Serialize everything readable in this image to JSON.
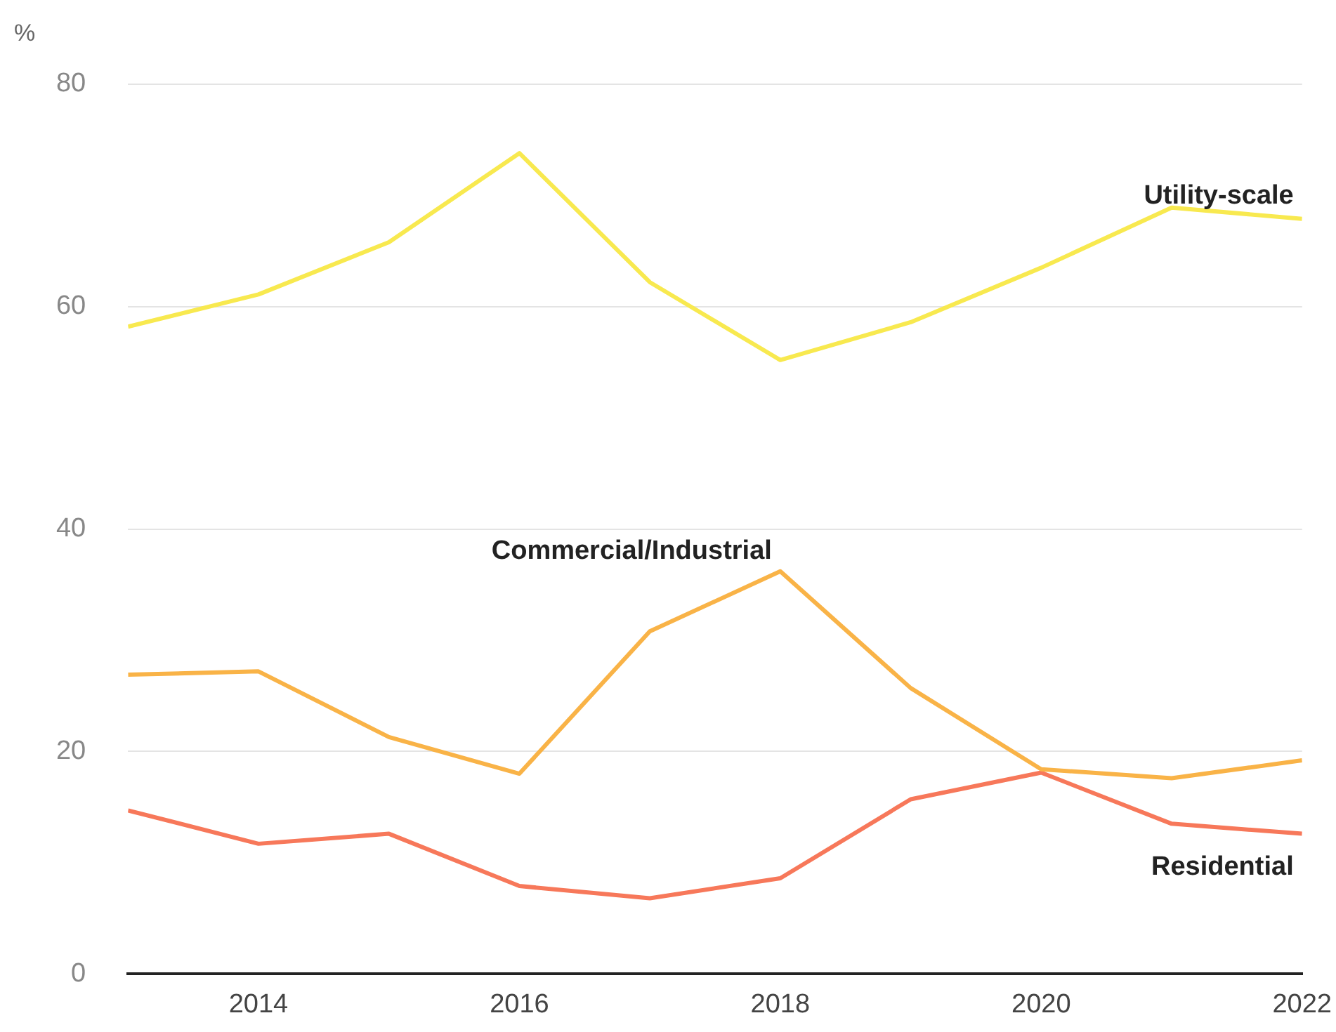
{
  "chart_data": {
    "type": "line",
    "ylabel": "%",
    "x": [
      2013,
      2014,
      2015,
      2016,
      2017,
      2018,
      2019,
      2020,
      2021,
      2022
    ],
    "series": [
      {
        "name": "Utility-scale",
        "color": "#f8e94f",
        "values": [
          58.2,
          61.1,
          65.8,
          73.8,
          62.2,
          55.2,
          58.6,
          63.5,
          68.9,
          67.9
        ]
      },
      {
        "name": "Commercial/Industrial",
        "color": "#f9b347",
        "values": [
          26.9,
          27.2,
          21.3,
          18.0,
          30.8,
          36.2,
          25.7,
          18.4,
          17.6,
          19.2
        ]
      },
      {
        "name": "Residential",
        "color": "#f7785a",
        "values": [
          14.7,
          11.7,
          12.6,
          7.9,
          6.8,
          8.6,
          15.7,
          18.1,
          13.5,
          12.6
        ]
      }
    ],
    "xlim": [
      2013,
      2022
    ],
    "xticks": [
      2014,
      2016,
      2018,
      2020,
      2022
    ],
    "ylim": [
      0,
      80
    ],
    "yticks": [
      0,
      20,
      40,
      60,
      80
    ],
    "grid": "y",
    "legend": false,
    "marker": "none",
    "line_style": "solid"
  }
}
